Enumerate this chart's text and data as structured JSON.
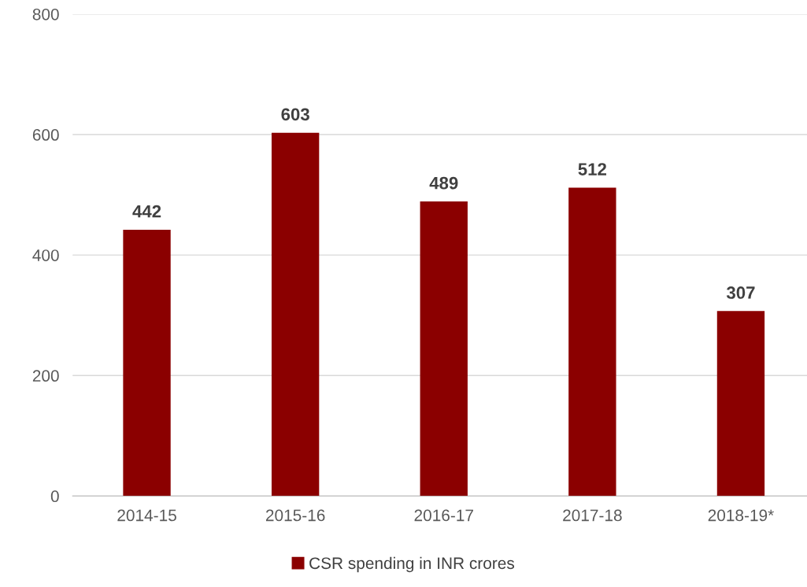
{
  "chart_data": {
    "type": "bar",
    "categories": [
      "2014-15",
      "2015-16",
      "2016-17",
      "2017-18",
      "2018-19*"
    ],
    "series": [
      {
        "name": "CSR spending in INR crores",
        "color": "#8b0000",
        "values": [
          442,
          603,
          489,
          512,
          307
        ]
      }
    ],
    "ylim": [
      0,
      800
    ],
    "yticks": [
      0,
      200,
      400,
      600,
      800
    ],
    "grid": "y",
    "legend": "bottom",
    "data_labels": true
  }
}
